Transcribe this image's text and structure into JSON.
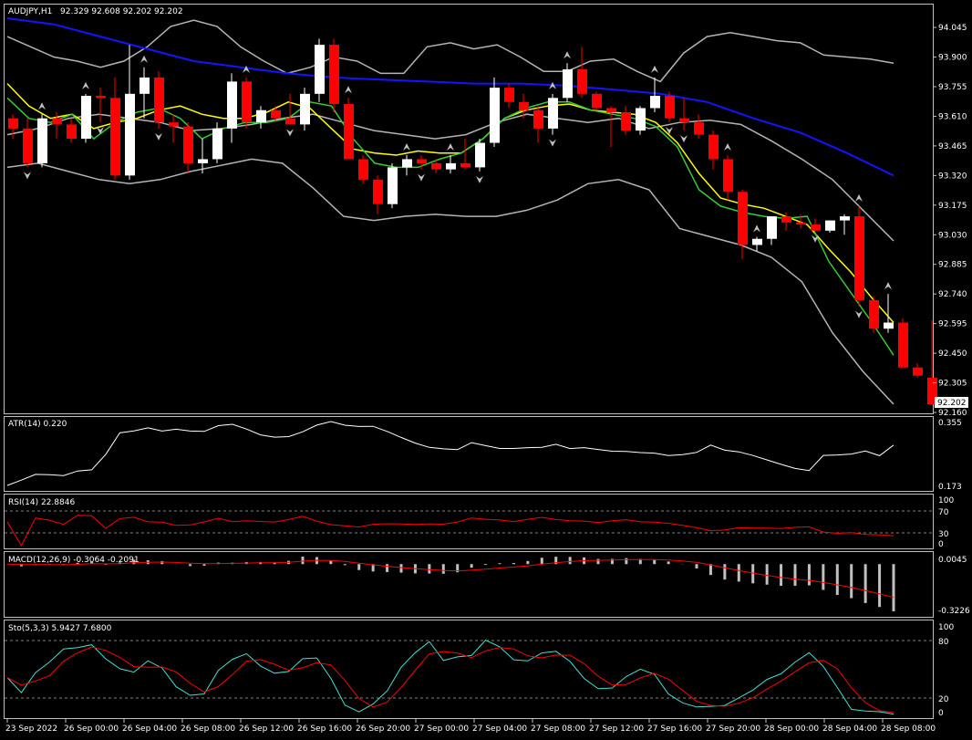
{
  "colors": {
    "background": "#000000",
    "frame": "#c0c0c0",
    "bull_candle": "#ffffff",
    "bear_candle": "#ff0000",
    "bands": "#b4b4b4",
    "ma_blue": "#1414ff",
    "ma_yellow": "#ffff00",
    "ma_green": "#33cc33",
    "signal_red": "#ff0000",
    "stoch_main": "#40e0d0",
    "atr_line": "#ffffff",
    "macd_hist": "#c0c0c0",
    "price_tag_bg": "#ffffff",
    "price_tag_text": "#000000",
    "arrow": "#c0c0c0"
  },
  "header": {
    "symbol_label": "AUDJPY,H1",
    "ohlc_label": "92.329 92.608 92.202 92.202"
  },
  "price_axis": {
    "ticks": [
      "94.045",
      "93.900",
      "93.755",
      "93.610",
      "93.465",
      "93.320",
      "93.175",
      "93.030",
      "92.885",
      "92.740",
      "92.595",
      "92.450",
      "92.305",
      "92.160"
    ],
    "tick_values": [
      94.045,
      93.9,
      93.755,
      93.61,
      93.465,
      93.32,
      93.175,
      93.03,
      92.885,
      92.74,
      92.595,
      92.45,
      92.305,
      92.16
    ],
    "current_price": "92.202"
  },
  "time_axis": {
    "labels": [
      "23 Sep 2022",
      "26 Sep 00:00",
      "26 Sep 04:00",
      "26 Sep 08:00",
      "26 Sep 12:00",
      "26 Sep 16:00",
      "26 Sep 20:00",
      "27 Sep 00:00",
      "27 Sep 04:00",
      "27 Sep 08:00",
      "27 Sep 12:00",
      "27 Sep 16:00",
      "27 Sep 20:00",
      "28 Sep 00:00",
      "28 Sep 04:00",
      "28 Sep 08:00"
    ]
  },
  "indicators": {
    "atr": {
      "label": "ATR(14) 0.220",
      "axis_ticks": [
        "0.355",
        "0.173"
      ]
    },
    "rsi": {
      "label": "RSI(14) 22.8846",
      "axis_ticks": [
        "100",
        "70",
        "30",
        "0"
      ]
    },
    "macd": {
      "label": "MACD(12,26,9) -0.3064 -0.2091",
      "axis_ticks": [
        "0.0045",
        "-0.3226"
      ]
    },
    "stoch": {
      "label": "Sto(5,3,3) 5.9427 7.6800",
      "axis_ticks": [
        "100",
        "80",
        "20",
        "0"
      ]
    }
  },
  "chart_data": {
    "type": "candlestick",
    "title": "AUDJPY,H1",
    "ylim": [
      92.16,
      94.09
    ],
    "candles": [
      [
        93.6,
        93.62,
        93.5,
        93.55
      ],
      [
        93.55,
        93.6,
        93.36,
        93.38
      ],
      [
        93.38,
        93.62,
        93.36,
        93.6
      ],
      [
        93.6,
        93.63,
        93.5,
        93.57
      ],
      [
        93.57,
        93.6,
        93.48,
        93.5
      ],
      [
        93.5,
        93.72,
        93.48,
        93.71
      ],
      [
        93.71,
        93.75,
        93.58,
        93.7
      ],
      [
        93.7,
        93.8,
        93.3,
        93.32
      ],
      [
        93.32,
        93.96,
        93.3,
        93.72
      ],
      [
        93.72,
        93.85,
        93.6,
        93.8
      ],
      [
        93.8,
        93.83,
        93.55,
        93.58
      ],
      [
        93.58,
        93.62,
        93.48,
        93.56
      ],
      [
        93.56,
        93.58,
        93.33,
        93.38
      ],
      [
        93.38,
        93.5,
        93.33,
        93.4
      ],
      [
        93.4,
        93.58,
        93.38,
        93.55
      ],
      [
        93.55,
        93.82,
        93.48,
        93.78
      ],
      [
        93.78,
        93.8,
        93.55,
        93.58
      ],
      [
        93.58,
        93.66,
        93.55,
        93.64
      ],
      [
        93.64,
        93.66,
        93.58,
        93.6
      ],
      [
        93.6,
        93.72,
        93.57,
        93.57
      ],
      [
        93.57,
        93.75,
        93.54,
        93.72
      ],
      [
        93.72,
        93.99,
        93.68,
        93.96
      ],
      [
        93.96,
        93.99,
        93.63,
        93.67
      ],
      [
        93.67,
        93.7,
        93.4,
        93.4
      ],
      [
        93.4,
        93.42,
        93.28,
        93.3
      ],
      [
        93.3,
        93.32,
        93.13,
        93.18
      ],
      [
        93.18,
        93.38,
        93.16,
        93.36
      ],
      [
        93.36,
        93.42,
        93.32,
        93.4
      ],
      [
        93.4,
        93.42,
        93.35,
        93.38
      ],
      [
        93.38,
        93.4,
        93.33,
        93.35
      ],
      [
        93.35,
        93.42,
        93.33,
        93.38
      ],
      [
        93.38,
        93.5,
        93.35,
        93.36
      ],
      [
        93.36,
        93.5,
        93.34,
        93.48
      ],
      [
        93.48,
        93.8,
        93.46,
        93.75
      ],
      [
        93.75,
        93.77,
        93.65,
        93.68
      ],
      [
        93.68,
        93.72,
        93.6,
        93.64
      ],
      [
        93.64,
        93.66,
        93.48,
        93.55
      ],
      [
        93.55,
        93.72,
        93.52,
        93.7
      ],
      [
        93.7,
        93.87,
        93.68,
        93.84
      ],
      [
        93.84,
        93.95,
        93.7,
        93.72
      ],
      [
        93.72,
        93.73,
        93.64,
        93.65
      ],
      [
        93.65,
        93.66,
        93.46,
        93.63
      ],
      [
        93.63,
        93.66,
        93.52,
        93.54
      ],
      [
        93.54,
        93.66,
        93.52,
        93.65
      ],
      [
        93.65,
        93.8,
        93.63,
        93.71
      ],
      [
        93.71,
        93.73,
        93.58,
        93.6
      ],
      [
        93.6,
        93.7,
        93.54,
        93.58
      ],
      [
        93.58,
        93.62,
        93.5,
        93.52
      ],
      [
        93.52,
        93.54,
        93.35,
        93.4
      ],
      [
        93.4,
        93.42,
        93.2,
        93.24
      ],
      [
        93.24,
        93.25,
        92.91,
        92.98
      ],
      [
        92.98,
        93.02,
        92.95,
        93.01
      ],
      [
        93.01,
        93.12,
        92.98,
        93.12
      ],
      [
        93.12,
        93.14,
        93.05,
        93.09
      ],
      [
        93.09,
        93.13,
        93.06,
        93.08
      ],
      [
        93.08,
        93.11,
        93.05,
        93.05
      ],
      [
        93.05,
        93.1,
        93.04,
        93.1
      ],
      [
        93.1,
        93.13,
        93.03,
        93.12
      ],
      [
        93.12,
        93.17,
        92.68,
        92.71
      ],
      [
        92.71,
        92.73,
        92.55,
        92.57
      ],
      [
        92.57,
        92.74,
        92.55,
        92.6
      ],
      [
        92.6,
        92.62,
        92.38,
        92.38
      ],
      [
        92.38,
        92.4,
        92.33,
        92.34
      ],
      [
        92.33,
        92.61,
        92.2,
        92.2
      ]
    ],
    "moving_average_blue": [
      94.09,
      94.06,
      94.0,
      93.94,
      93.88,
      93.85,
      93.82,
      93.8,
      93.79,
      93.78,
      93.77,
      93.77,
      93.76,
      93.74,
      93.72,
      93.68,
      93.6,
      93.53,
      93.43,
      93.32
    ],
    "moving_average_yellow": [
      93.77,
      93.66,
      93.6,
      93.62,
      93.55,
      93.58,
      93.6,
      93.64,
      93.66,
      93.62,
      93.6,
      93.6,
      93.63,
      93.68,
      93.65,
      93.55,
      93.45,
      93.43,
      93.42,
      93.44,
      93.43,
      93.43,
      93.5,
      93.6,
      93.64,
      93.66,
      93.67,
      93.64,
      93.63,
      93.62,
      93.58,
      93.48,
      93.33,
      93.21,
      93.18,
      93.16,
      93.12,
      93.08,
      92.96,
      92.85,
      92.72,
      92.6
    ],
    "moving_average_green": [
      93.7,
      93.6,
      93.58,
      93.62,
      93.5,
      93.58,
      93.63,
      93.65,
      93.6,
      93.5,
      93.55,
      93.58,
      93.58,
      93.6,
      93.68,
      93.66,
      93.5,
      93.38,
      93.36,
      93.36,
      93.4,
      93.43,
      93.5,
      93.6,
      93.65,
      93.68,
      93.68,
      93.64,
      93.62,
      93.6,
      93.56,
      93.46,
      93.25,
      93.17,
      93.14,
      93.12,
      93.11,
      93.12,
      92.9,
      92.75,
      92.6,
      92.44
    ],
    "bollinger_upper": [
      94.0,
      93.95,
      93.9,
      93.88,
      93.85,
      93.88,
      93.95,
      94.05,
      94.08,
      94.05,
      93.95,
      93.88,
      93.82,
      93.85,
      93.9,
      93.88,
      93.82,
      93.82,
      93.95,
      93.97,
      93.94,
      93.96,
      93.9,
      93.83,
      93.83,
      93.88,
      93.89,
      93.83,
      93.78,
      93.92,
      94.0,
      94.02,
      94.0,
      93.98,
      93.97,
      93.91,
      93.9,
      93.89,
      93.87
    ],
    "bollinger_middle": [
      93.52,
      93.55,
      93.6,
      93.62,
      93.6,
      93.58,
      93.54,
      93.55,
      93.57,
      93.6,
      93.62,
      93.58,
      93.54,
      93.52,
      93.5,
      93.52,
      93.58,
      93.62,
      93.6,
      93.58,
      93.6,
      93.55,
      93.58,
      93.59,
      93.57,
      93.49,
      93.4,
      93.3,
      93.15,
      93.0
    ],
    "bollinger_lower": [
      93.36,
      93.38,
      93.34,
      93.3,
      93.28,
      93.3,
      93.34,
      93.37,
      93.4,
      93.38,
      93.26,
      93.12,
      93.1,
      93.12,
      93.13,
      93.12,
      93.12,
      93.15,
      93.2,
      93.28,
      93.3,
      93.25,
      93.06,
      93.02,
      92.98,
      92.92,
      92.8,
      92.55,
      92.36,
      92.2
    ]
  }
}
